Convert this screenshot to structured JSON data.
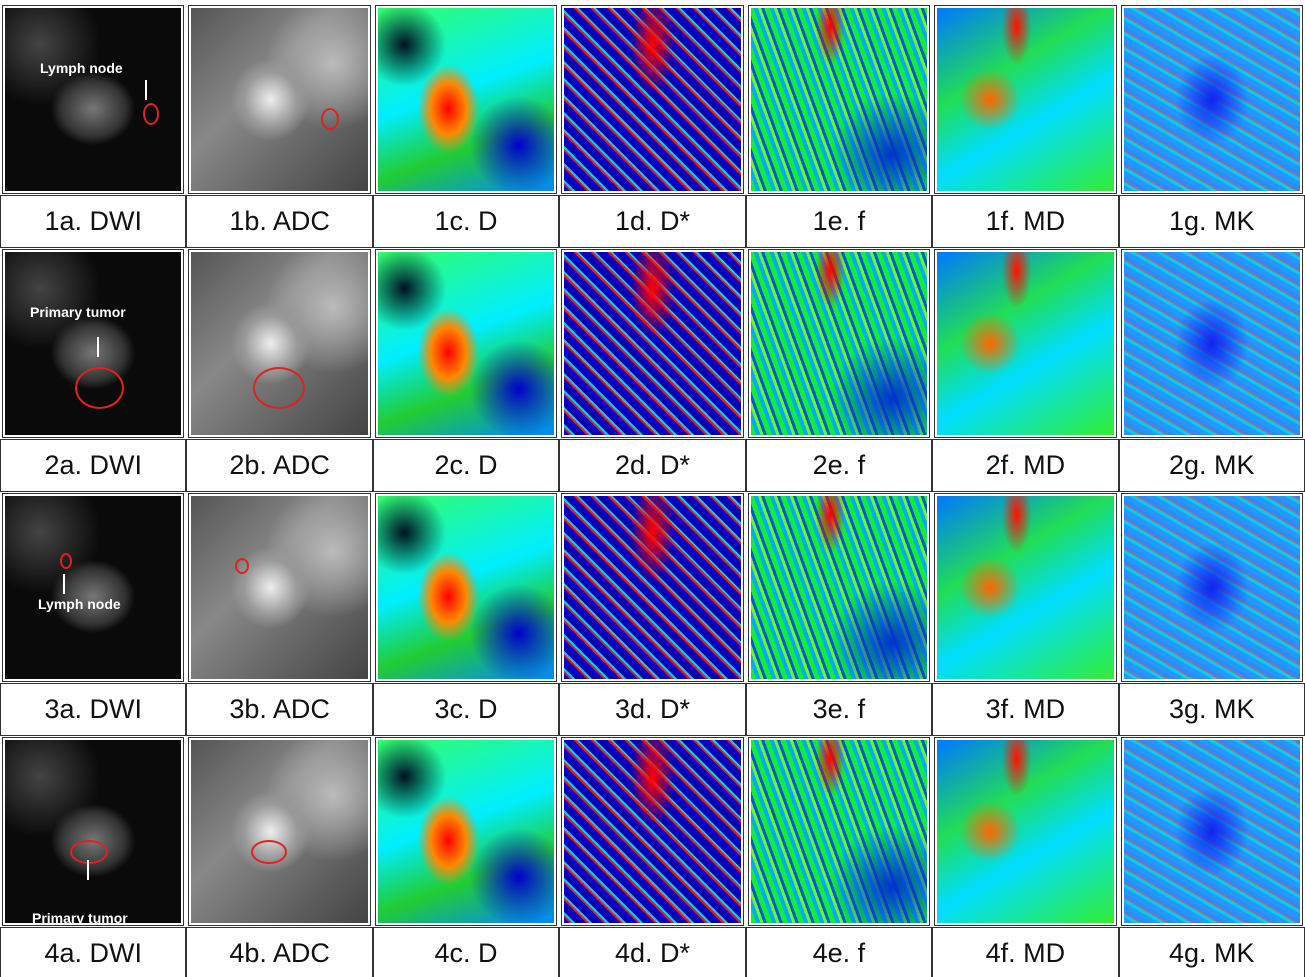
{
  "rows": [
    {
      "cells": [
        "1a. DWI",
        "1b. ADC",
        "1c. D",
        "1d. D*",
        "1e. f",
        "1f. MD",
        "1g. MK"
      ],
      "annotation": "Lymph node"
    },
    {
      "cells": [
        "2a. DWI",
        "2b. ADC",
        "2c. D",
        "2d. D*",
        "2e. f",
        "2f. MD",
        "2g. MK"
      ],
      "annotation": "Primary tumor"
    },
    {
      "cells": [
        "3a. DWI",
        "3b. ADC",
        "3c. D",
        "3d. D*",
        "3e. f",
        "3f. MD",
        "3g. MK"
      ],
      "annotation": "Lymph node"
    },
    {
      "cells": [
        "4a. DWI",
        "4b. ADC",
        "4c. D",
        "4d. D*",
        "4e. f",
        "4f. MD",
        "4g. MK"
      ],
      "annotation": "Primary tumor"
    }
  ]
}
